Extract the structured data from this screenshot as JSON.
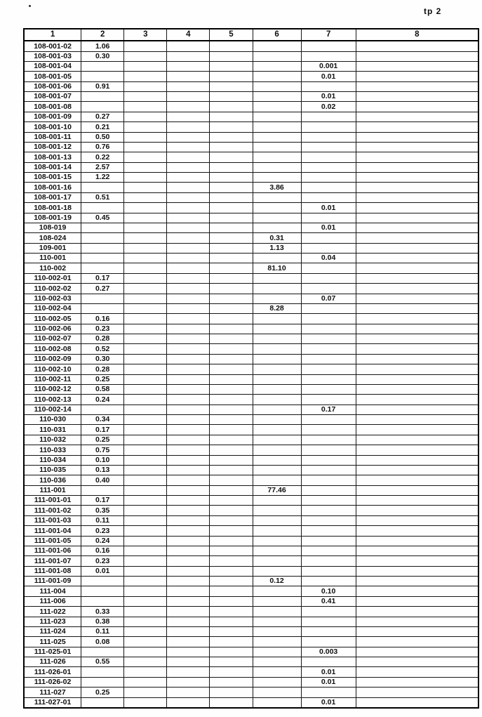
{
  "page": {
    "label": "tp 2"
  },
  "accent_colors": {
    "ink": "#101010",
    "paper": "#fefefe"
  },
  "table": {
    "columns": [
      "1",
      "2",
      "3",
      "4",
      "5",
      "6",
      "7",
      "8"
    ],
    "rows": [
      [
        "108-001-02",
        "1.06",
        "",
        "",
        "",
        "",
        "",
        ""
      ],
      [
        "108-001-03",
        "0.30",
        "",
        "",
        "",
        "",
        "",
        ""
      ],
      [
        "108-001-04",
        "",
        "",
        "",
        "",
        "",
        "0.001",
        ""
      ],
      [
        "108-001-05",
        "",
        "",
        "",
        "",
        "",
        "0.01",
        ""
      ],
      [
        "108-001-06",
        "0.91",
        "",
        "",
        "",
        "",
        "",
        ""
      ],
      [
        "108-001-07",
        "",
        "",
        "",
        "",
        "",
        "0.01",
        ""
      ],
      [
        "108-001-08",
        "",
        "",
        "",
        "",
        "",
        "0.02",
        ""
      ],
      [
        "108-001-09",
        "0.27",
        "",
        "",
        "",
        "",
        "",
        ""
      ],
      [
        "108-001-10",
        "0.21",
        "",
        "",
        "",
        "",
        "",
        ""
      ],
      [
        "108-001-11",
        "0.50",
        "",
        "",
        "",
        "",
        "",
        ""
      ],
      [
        "108-001-12",
        "0.76",
        "",
        "",
        "",
        "",
        "",
        ""
      ],
      [
        "108-001-13",
        "0.22",
        "",
        "",
        "",
        "",
        "",
        ""
      ],
      [
        "108-001-14",
        "2.57",
        "",
        "",
        "",
        "",
        "",
        ""
      ],
      [
        "108-001-15",
        "1.22",
        "",
        "",
        "",
        "",
        "",
        ""
      ],
      [
        "108-001-16",
        "",
        "",
        "",
        "",
        "3.86",
        "",
        ""
      ],
      [
        "108-001-17",
        "0.51",
        "",
        "",
        "",
        "",
        "",
        ""
      ],
      [
        "108-001-18",
        "",
        "",
        "",
        "",
        "",
        "0.01",
        ""
      ],
      [
        "108-001-19",
        "0.45",
        "",
        "",
        "",
        "",
        "",
        ""
      ],
      [
        "108-019",
        "",
        "",
        "",
        "",
        "",
        "0.01",
        ""
      ],
      [
        "108-024",
        "",
        "",
        "",
        "",
        "0.31",
        "",
        ""
      ],
      [
        "109-001",
        "",
        "",
        "",
        "",
        "1.13",
        "",
        ""
      ],
      [
        "110-001",
        "",
        "",
        "",
        "",
        "",
        "0.04",
        ""
      ],
      [
        "110-002",
        "",
        "",
        "",
        "",
        "81.10",
        "",
        ""
      ],
      [
        "110-002-01",
        "0.17",
        "",
        "",
        "",
        "",
        "",
        ""
      ],
      [
        "110-002-02",
        "0.27",
        "",
        "",
        "",
        "",
        "",
        ""
      ],
      [
        "110-002-03",
        "",
        "",
        "",
        "",
        "",
        "0.07",
        ""
      ],
      [
        "110-002-04",
        "",
        "",
        "",
        "",
        "8.28",
        "",
        ""
      ],
      [
        "110-002-05",
        "0.16",
        "",
        "",
        "",
        "",
        "",
        ""
      ],
      [
        "110-002-06",
        "0.23",
        "",
        "",
        "",
        "",
        "",
        ""
      ],
      [
        "110-002-07",
        "0.28",
        "",
        "",
        "",
        "",
        "",
        ""
      ],
      [
        "110-002-08",
        "0.52",
        "",
        "",
        "",
        "",
        "",
        ""
      ],
      [
        "110-002-09",
        "0.30",
        "",
        "",
        "",
        "",
        "",
        ""
      ],
      [
        "110-002-10",
        "0.28",
        "",
        "",
        "",
        "",
        "",
        ""
      ],
      [
        "110-002-11",
        "0.25",
        "",
        "",
        "",
        "",
        "",
        ""
      ],
      [
        "110-002-12",
        "0.58",
        "",
        "",
        "",
        "",
        "",
        ""
      ],
      [
        "110-002-13",
        "0.24",
        "",
        "",
        "",
        "",
        "",
        ""
      ],
      [
        "110-002-14",
        "",
        "",
        "",
        "",
        "",
        "0.17",
        ""
      ],
      [
        "110-030",
        "0.34",
        "",
        "",
        "",
        "",
        "",
        ""
      ],
      [
        "110-031",
        "0.17",
        "",
        "",
        "",
        "",
        "",
        ""
      ],
      [
        "110-032",
        "0.25",
        "",
        "",
        "",
        "",
        "",
        ""
      ],
      [
        "110-033",
        "0.75",
        "",
        "",
        "",
        "",
        "",
        ""
      ],
      [
        "110-034",
        "0.10",
        "",
        "",
        "",
        "",
        "",
        ""
      ],
      [
        "110-035",
        "0.13",
        "",
        "",
        "",
        "",
        "",
        ""
      ],
      [
        "110-036",
        "0.40",
        "",
        "",
        "",
        "",
        "",
        ""
      ],
      [
        "111-001",
        "",
        "",
        "",
        "",
        "77.46",
        "",
        ""
      ],
      [
        "111-001-01",
        "0.17",
        "",
        "",
        "",
        "",
        "",
        ""
      ],
      [
        "111-001-02",
        "0.35",
        "",
        "",
        "",
        "",
        "",
        ""
      ],
      [
        "111-001-03",
        "0.11",
        "",
        "",
        "",
        "",
        "",
        ""
      ],
      [
        "111-001-04",
        "0.23",
        "",
        "",
        "",
        "",
        "",
        ""
      ],
      [
        "111-001-05",
        "0.24",
        "",
        "",
        "",
        "",
        "",
        ""
      ],
      [
        "111-001-06",
        "0.16",
        "",
        "",
        "",
        "",
        "",
        ""
      ],
      [
        "111-001-07",
        "0.23",
        "",
        "",
        "",
        "",
        "",
        ""
      ],
      [
        "111-001-08",
        "0.01",
        "",
        "",
        "",
        "",
        "",
        ""
      ],
      [
        "111-001-09",
        "",
        "",
        "",
        "",
        "0.12",
        "",
        ""
      ],
      [
        "111-004",
        "",
        "",
        "",
        "",
        "",
        "0.10",
        ""
      ],
      [
        "111-006",
        "",
        "",
        "",
        "",
        "",
        "0.41",
        ""
      ],
      [
        "111-022",
        "0.33",
        "",
        "",
        "",
        "",
        "",
        ""
      ],
      [
        "111-023",
        "0.38",
        "",
        "",
        "",
        "",
        "",
        ""
      ],
      [
        "111-024",
        "0.11",
        "",
        "",
        "",
        "",
        "",
        ""
      ],
      [
        "111-025",
        "0.08",
        "",
        "",
        "",
        "",
        "",
        ""
      ],
      [
        "111-025-01",
        "",
        "",
        "",
        "",
        "",
        "0.003",
        ""
      ],
      [
        "111-026",
        "0.55",
        "",
        "",
        "",
        "",
        "",
        ""
      ],
      [
        "111-026-01",
        "",
        "",
        "",
        "",
        "",
        "0.01",
        ""
      ],
      [
        "111-026-02",
        "",
        "",
        "",
        "",
        "",
        "0.01",
        ""
      ],
      [
        "111-027",
        "0.25",
        "",
        "",
        "",
        "",
        "",
        ""
      ],
      [
        "111-027-01",
        "",
        "",
        "",
        "",
        "",
        "0.01",
        ""
      ]
    ]
  }
}
